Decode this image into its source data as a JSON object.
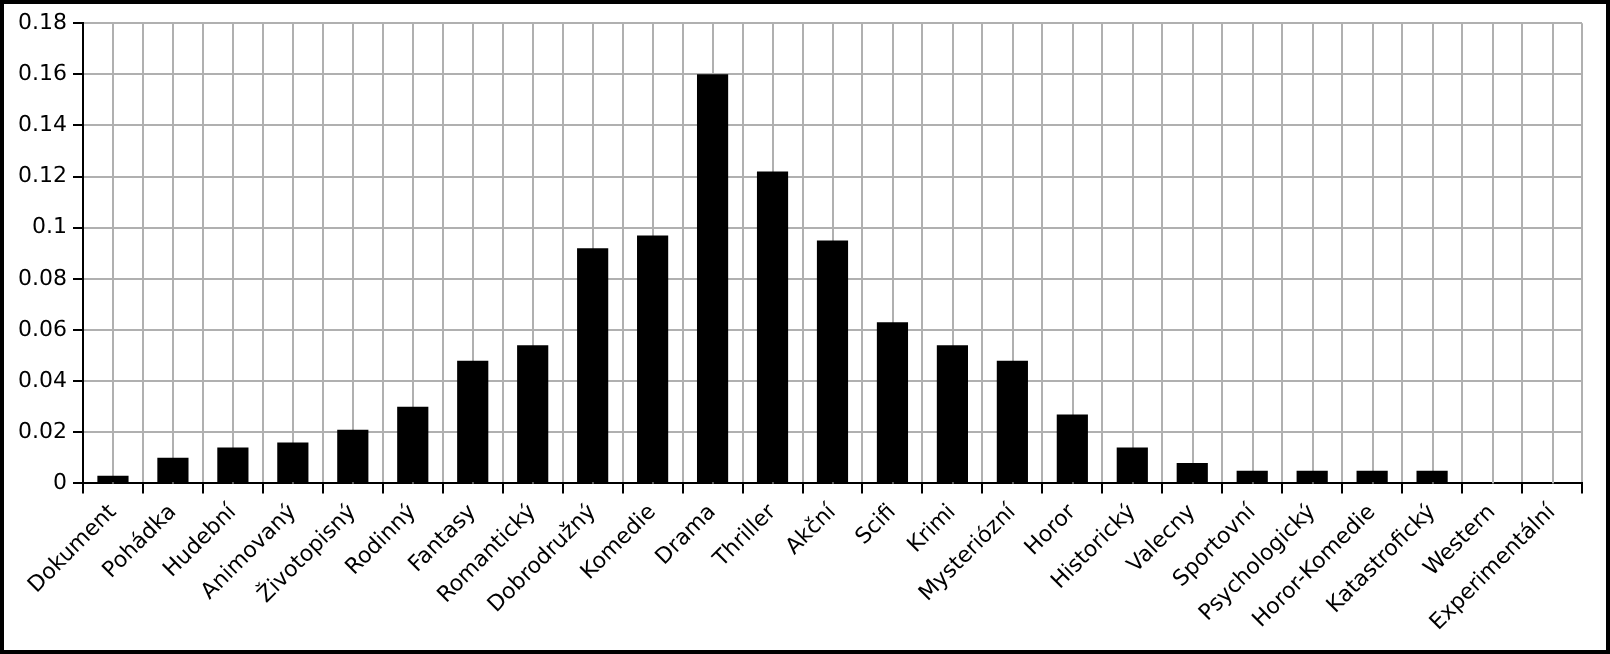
{
  "chart_data": {
    "type": "bar",
    "categories": [
      "Dokument",
      "Pohádka",
      "Hudební",
      "Animovaný",
      "Životopisný",
      "Rodinný",
      "Fantasy",
      "Romantický",
      "Dobrodružný",
      "Komedie",
      "Drama",
      "Thriller",
      "Akční",
      "Scifi",
      "Krimi",
      "Mysteriózní",
      "Horor",
      "Historický",
      "Valecny",
      "Sportovní",
      "Psychologický",
      "Horor-Komedie",
      "Katastrofický",
      "Western",
      "Experimentální"
    ],
    "values": [
      0.003,
      0.01,
      0.014,
      0.016,
      0.021,
      0.03,
      0.048,
      0.054,
      0.092,
      0.097,
      0.16,
      0.122,
      0.095,
      0.063,
      0.054,
      0.048,
      0.027,
      0.014,
      0.008,
      0.005,
      0.005,
      0.005,
      0.005,
      0,
      0
    ],
    "color": "#000000",
    "ylim": [
      0,
      0.18
    ],
    "yticks": [
      0,
      0.02,
      0.04,
      0.06,
      0.08,
      0.1,
      0.12,
      0.14,
      0.16,
      0.18
    ],
    "grid": true,
    "legend": false
  }
}
